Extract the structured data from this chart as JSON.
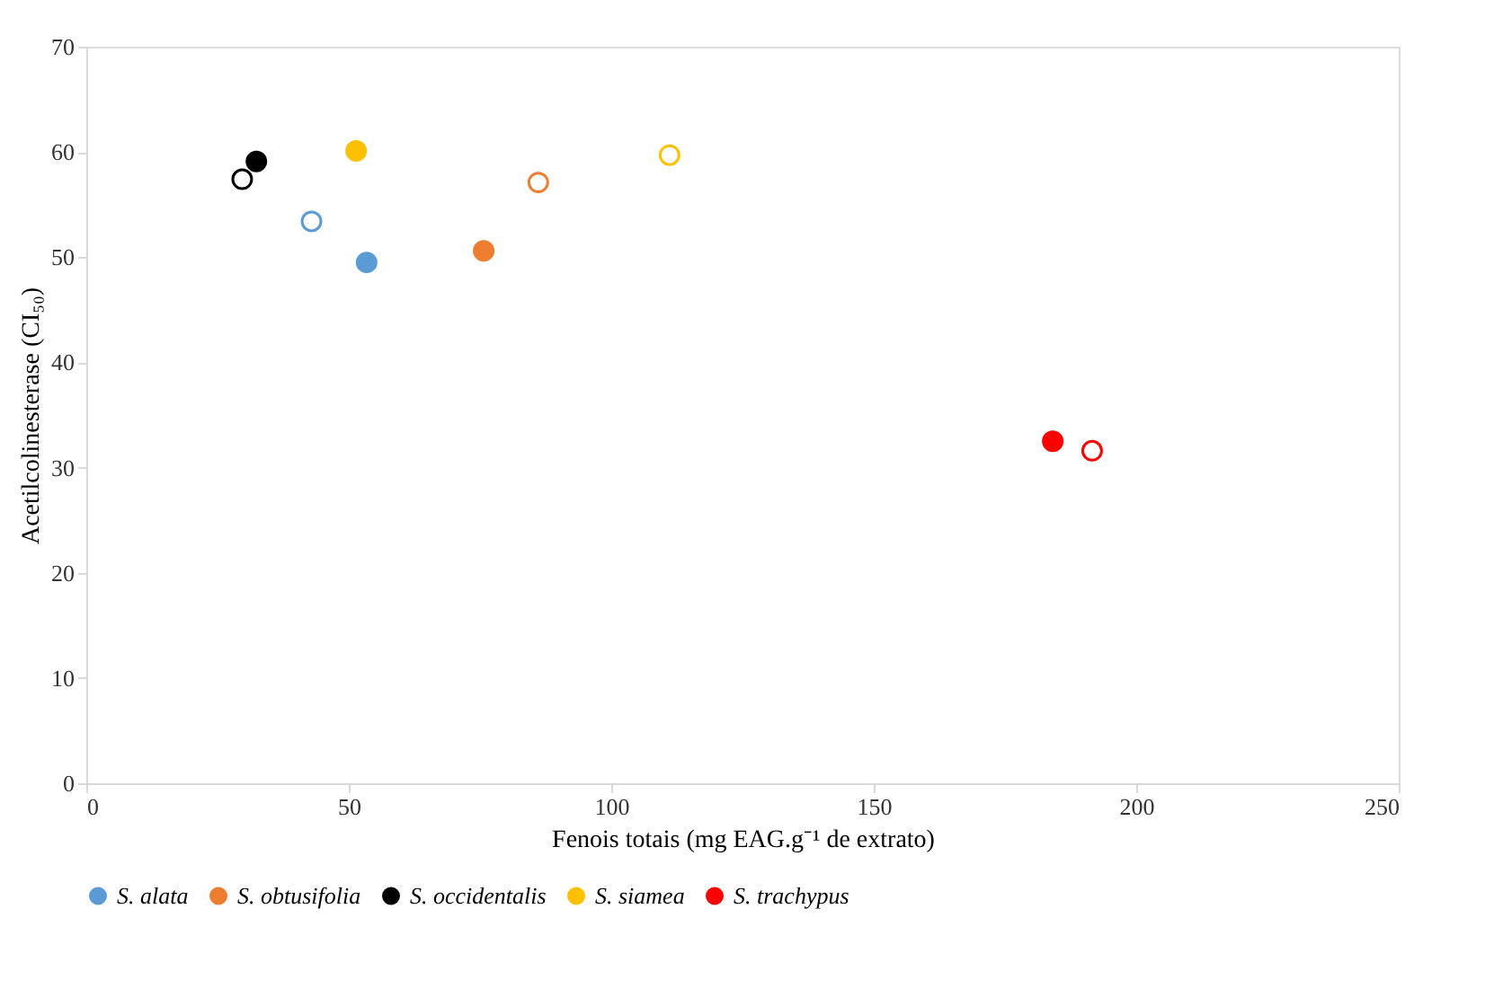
{
  "chart_data": {
    "type": "scatter",
    "xlabel": "Fenois totais (mg EAG.g⁻¹ de extrato)",
    "ylabel": "Acetilcolinesterase (CI₅₀)",
    "xlim": [
      0,
      250
    ],
    "xticks": [
      0,
      50,
      100,
      150,
      200,
      250
    ],
    "ylim": [
      0,
      70
    ],
    "yticks": [
      0,
      10,
      20,
      30,
      40,
      50,
      60,
      70
    ],
    "grid": false,
    "legend": "bottom",
    "marker": "circle",
    "series": [
      {
        "name": "S. alata",
        "color": "#5b9bd5",
        "x": [
          53.4
        ],
        "values": [
          49.5
        ]
      },
      {
        "name": "S. obtusifolia",
        "color": "#ed7d31",
        "x": [
          75.7
        ],
        "values": [
          50.6
        ]
      },
      {
        "name": "S. occidentalis",
        "color": "#000000",
        "x": [
          32.4
        ],
        "values": [
          59.1
        ]
      },
      {
        "name": "S. siamea",
        "color": "#ffc000",
        "x": [
          51.4
        ],
        "values": [
          60.1
        ]
      },
      {
        "name": "S. trachypus",
        "color": "#ff0000",
        "x": [
          184.1
        ],
        "values": [
          32.5
        ]
      },
      {
        "color": "#5b9bd5",
        "x": [
          42.9
        ],
        "values": [
          53.4
        ]
      },
      {
        "color": "#ed7d31",
        "x": [
          86.1
        ],
        "values": [
          57.1
        ]
      },
      {
        "color": "#000000",
        "x": [
          29.7
        ],
        "values": [
          57.4
        ]
      },
      {
        "color": "#ffc000",
        "x": [
          111.1
        ],
        "values": [
          59.7
        ]
      },
      {
        "color": "#ff0000",
        "x": [
          191.6
        ],
        "values": [
          31.6
        ]
      }
    ]
  }
}
